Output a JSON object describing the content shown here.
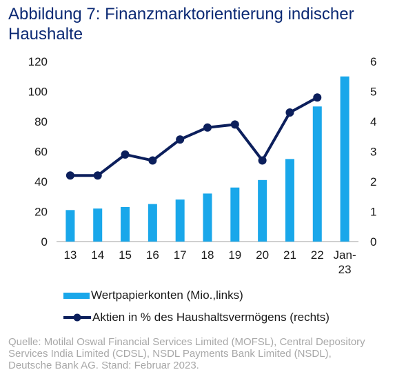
{
  "title": "Abbildung 7: Finanzmarktorientierung indischer Haushalte",
  "chart_data": {
    "type": "bar+line",
    "categories": [
      "13",
      "14",
      "15",
      "16",
      "17",
      "18",
      "19",
      "20",
      "21",
      "22",
      "Jan-23"
    ],
    "series": [
      {
        "name": "Wertpapierkonten (Mio.,links)",
        "type": "bar",
        "axis": "left",
        "color": "#19a7ea",
        "values": [
          21,
          22,
          23,
          25,
          28,
          32,
          36,
          41,
          55,
          90,
          110
        ]
      },
      {
        "name": "Aktien in % des Haushaltsvermögens (rechts)",
        "type": "line",
        "axis": "right",
        "color": "#0c1f5c",
        "values": [
          2.2,
          2.2,
          2.9,
          2.7,
          3.4,
          3.8,
          3.9,
          2.7,
          4.3,
          4.8,
          null
        ]
      }
    ],
    "y_left": {
      "lim": [
        0,
        120
      ],
      "ticks": [
        "0",
        "20",
        "40",
        "60",
        "80",
        "100",
        "120"
      ]
    },
    "y_right": {
      "lim": [
        0,
        6
      ],
      "ticks": [
        "0",
        "1",
        "2",
        "3",
        "4",
        "5",
        "6"
      ]
    },
    "x_tick_labels": [
      "13",
      "14",
      "15",
      "16",
      "17",
      "18",
      "19",
      "20",
      "21",
      "22",
      "Jan-\n23"
    ],
    "grid": false,
    "legend_position": "bottom-left"
  },
  "legend": {
    "bar_label": "Wertpapierkonten (Mio.,links)",
    "line_label": "Aktien in % des Haushaltsvermögens (rechts)"
  },
  "source": "Quelle: Motilal Oswal Financial Services Limited (MOFSL), Central Depository Services India Limited (CDSL), NSDL Payments Bank Limited (NSDL), Deutsche Bank AG. Stand: Februar 2023."
}
